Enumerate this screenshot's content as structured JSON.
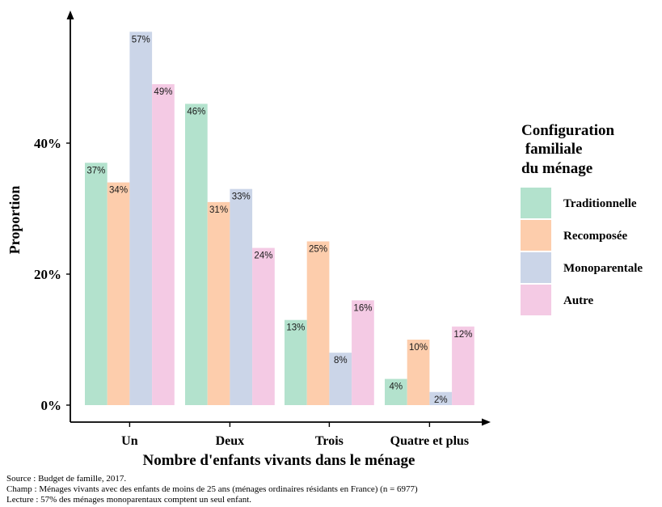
{
  "chart_data": {
    "type": "bar",
    "categories": [
      "Un",
      "Deux",
      "Trois",
      "Quatre et plus"
    ],
    "series": [
      {
        "name": "Traditionnelle",
        "values": [
          37,
          46,
          13,
          4
        ],
        "color": "#b3e2cd"
      },
      {
        "name": "Recomposée",
        "values": [
          34,
          31,
          25,
          10
        ],
        "color": "#fdcdac"
      },
      {
        "name": "Monoparentale",
        "values": [
          57,
          33,
          8,
          2
        ],
        "color": "#cbd5e8"
      },
      {
        "name": "Autre",
        "values": [
          49,
          24,
          16,
          12
        ],
        "color": "#f4cae4"
      }
    ],
    "value_suffix": "%",
    "ylim": [
      0,
      60
    ],
    "yticks": [
      0,
      20,
      40
    ],
    "ytick_labels": [
      "0%",
      "20%",
      "40%"
    ],
    "xlabel": "Nombre d'enfants vivants dans le ménage",
    "ylabel": "Proportion",
    "legend": {
      "title_lines": [
        "Configuration",
        " familiale",
        "du ménage"
      ],
      "placement": "right"
    },
    "grid": false
  },
  "caption": {
    "source": "Source : Budget de famille, 2017.",
    "champ": "Champ : Ménages vivants avec des enfants de moins de 25 ans (ménages ordinaires résidants en France) (n = 6977)",
    "lecture": "Lecture : 57% des ménages monoparentaux comptent un seul enfant."
  }
}
